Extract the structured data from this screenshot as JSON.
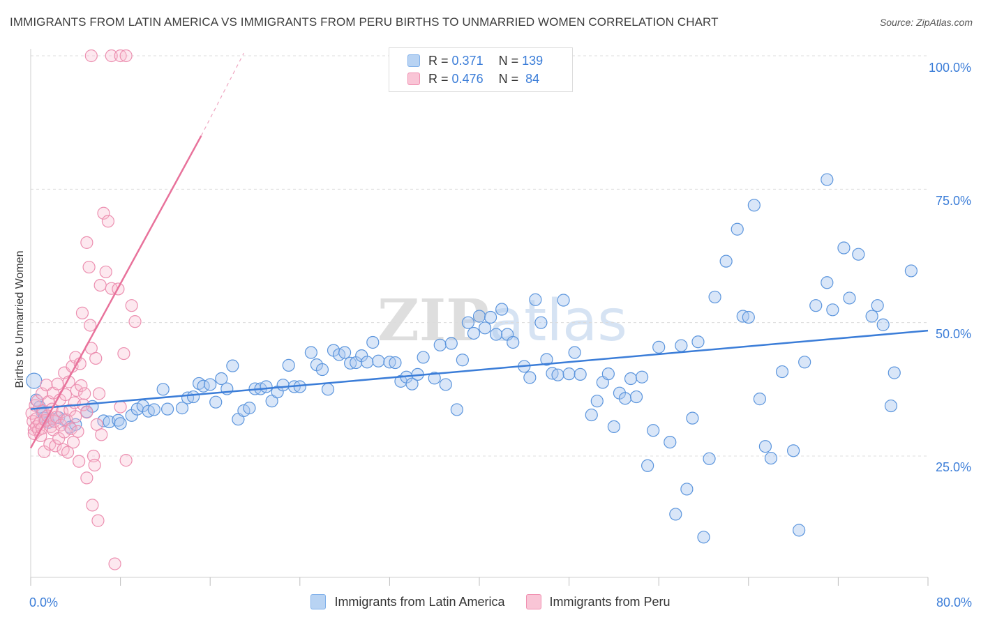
{
  "title": "IMMIGRANTS FROM LATIN AMERICA VS IMMIGRANTS FROM PERU BIRTHS TO UNMARRIED WOMEN CORRELATION CHART",
  "source": "Source: ZipAtlas.com",
  "watermark": "ZIPatlas",
  "legend": {
    "r_label": "R =",
    "n_label": "N =",
    "series": [
      {
        "r": "0.371",
        "n": "139",
        "color": "#7fb0ea",
        "fill": "#b8d3f3"
      },
      {
        "r": "0.476",
        "n": "84",
        "color": "#f08fb0",
        "fill": "#f9c5d6"
      }
    ]
  },
  "bottom_legend": [
    "Immigrants from Latin America",
    "Immigrants from Peru"
  ],
  "x_tick_labels": [
    "0.0%",
    "80.0%"
  ],
  "y_tick_labels": [
    "100.0%",
    "75.0%",
    "50.0%",
    "25.0%"
  ],
  "chart_data": {
    "type": "scatter",
    "title": "IMMIGRANTS FROM LATIN AMERICA VS IMMIGRANTS FROM PERU BIRTHS TO UNMARRIED WOMEN CORRELATION CHART",
    "xlabel": "",
    "ylabel": "Births to Unmarried Women",
    "xlim": [
      0,
      80
    ],
    "ylim": [
      0,
      103
    ],
    "y_ticks": [
      25,
      50,
      75,
      100
    ],
    "grid": "horizontal dashed",
    "legend_position": "top-center",
    "series": [
      {
        "name": "Immigrants from Latin America",
        "color": "#3b7dd8",
        "trend": {
          "x": [
            0,
            80
          ],
          "y": [
            33.8,
            48.5
          ]
        },
        "points": [
          [
            0.3,
            39.1
          ],
          [
            0.5,
            35.5
          ],
          [
            0.8,
            34.2
          ],
          [
            1,
            33.3
          ],
          [
            1.2,
            32.1
          ],
          [
            1.4,
            31.7
          ],
          [
            1.6,
            31.3
          ],
          [
            2,
            31.9
          ],
          [
            2.5,
            32.2
          ],
          [
            3,
            31.8
          ],
          [
            3.5,
            30.4
          ],
          [
            4,
            30.9
          ],
          [
            5,
            33.3
          ],
          [
            5.5,
            34.3
          ],
          [
            6.5,
            31.6
          ],
          [
            7,
            31.4
          ],
          [
            7.8,
            31.7
          ],
          [
            8,
            31.1
          ],
          [
            9,
            32.6
          ],
          [
            9.5,
            33.8
          ],
          [
            10,
            34.4
          ],
          [
            10.5,
            33.4
          ],
          [
            11,
            33.7
          ],
          [
            11.8,
            37.5
          ],
          [
            12.2,
            33.8
          ],
          [
            13.5,
            34
          ],
          [
            14,
            35.9
          ],
          [
            14.5,
            36.1
          ],
          [
            15,
            38.6
          ],
          [
            15.4,
            38.1
          ],
          [
            16,
            38.4
          ],
          [
            16.5,
            35.1
          ],
          [
            17,
            39.5
          ],
          [
            17.5,
            37.6
          ],
          [
            18,
            41.9
          ],
          [
            18.5,
            31.9
          ],
          [
            19,
            33.5
          ],
          [
            19.5,
            34
          ],
          [
            20,
            37.6
          ],
          [
            20.5,
            37.6
          ],
          [
            21,
            38
          ],
          [
            21.5,
            35.3
          ],
          [
            22,
            37
          ],
          [
            22.5,
            38.3
          ],
          [
            23,
            42
          ],
          [
            23.5,
            38
          ],
          [
            24,
            38
          ],
          [
            25,
            44.4
          ],
          [
            25.5,
            42.1
          ],
          [
            26,
            41.2
          ],
          [
            26.5,
            37.5
          ],
          [
            27,
            44.8
          ],
          [
            27.5,
            44
          ],
          [
            28,
            44.4
          ],
          [
            28.5,
            42.4
          ],
          [
            29,
            42.5
          ],
          [
            29.5,
            43.8
          ],
          [
            30,
            42.6
          ],
          [
            30.5,
            46.3
          ],
          [
            31,
            42.8
          ],
          [
            32,
            42.6
          ],
          [
            32.5,
            42.5
          ],
          [
            33,
            39
          ],
          [
            33.5,
            39.8
          ],
          [
            34,
            38.5
          ],
          [
            34.5,
            40.3
          ],
          [
            35,
            43.5
          ],
          [
            36,
            39.6
          ],
          [
            36.5,
            45.8
          ],
          [
            37,
            38.4
          ],
          [
            37.5,
            46.1
          ],
          [
            38,
            33.7
          ],
          [
            38.5,
            43
          ],
          [
            39,
            50
          ],
          [
            39.5,
            48
          ],
          [
            40,
            51.2
          ],
          [
            40.5,
            49
          ],
          [
            41,
            51
          ],
          [
            41.5,
            47.8
          ],
          [
            42,
            52.5
          ],
          [
            42.5,
            47.8
          ],
          [
            43,
            46.3
          ],
          [
            44,
            41.8
          ],
          [
            44.5,
            39.7
          ],
          [
            45,
            54.3
          ],
          [
            45.5,
            50
          ],
          [
            46,
            43.1
          ],
          [
            46.5,
            40.5
          ],
          [
            47,
            40.2
          ],
          [
            47.5,
            54.2
          ],
          [
            48,
            40.4
          ],
          [
            48.5,
            44.4
          ],
          [
            49,
            40.3
          ],
          [
            50,
            32.7
          ],
          [
            50.5,
            35.3
          ],
          [
            51,
            38.8
          ],
          [
            51.5,
            40.4
          ],
          [
            52,
            30.5
          ],
          [
            52.5,
            36.8
          ],
          [
            53,
            35.8
          ],
          [
            53.5,
            39.5
          ],
          [
            54,
            36.1
          ],
          [
            54.5,
            39.8
          ],
          [
            55,
            23.2
          ],
          [
            55.5,
            29.8
          ],
          [
            56,
            45.4
          ],
          [
            57,
            27.6
          ],
          [
            57.5,
            14.1
          ],
          [
            58,
            45.7
          ],
          [
            58.5,
            18.8
          ],
          [
            59,
            32.1
          ],
          [
            59.5,
            46.4
          ],
          [
            60,
            9.8
          ],
          [
            60.5,
            24.5
          ],
          [
            61,
            54.8
          ],
          [
            62,
            61.5
          ],
          [
            63,
            67.5
          ],
          [
            63.5,
            51.2
          ],
          [
            64,
            51
          ],
          [
            64.5,
            72
          ],
          [
            65,
            35.7
          ],
          [
            65.5,
            26.8
          ],
          [
            66,
            24.6
          ],
          [
            67,
            40.8
          ],
          [
            68,
            26
          ],
          [
            68.5,
            11.1
          ],
          [
            69,
            42.6
          ],
          [
            70,
            53.2
          ],
          [
            71,
            57.5
          ],
          [
            71.5,
            52.4
          ],
          [
            72.5,
            64
          ],
          [
            73,
            54.6
          ],
          [
            73.8,
            62.8
          ],
          [
            75,
            51.2
          ],
          [
            75.5,
            53.2
          ],
          [
            76,
            49.6
          ],
          [
            76.7,
            34.4
          ],
          [
            77,
            40.6
          ],
          [
            78.5,
            59.7
          ],
          [
            71,
            76.8
          ]
        ]
      },
      {
        "name": "Immigrants from Peru",
        "color": "#e8729b",
        "trend": {
          "x": [
            0,
            15.2
          ],
          "y": [
            26.5,
            85.0
          ]
        },
        "trend_dashed": {
          "x": [
            15.2,
            19
          ],
          "y": [
            85.0,
            100.5
          ]
        },
        "points": [
          [
            0.1,
            33
          ],
          [
            0.2,
            31.5
          ],
          [
            0.3,
            30
          ],
          [
            0.3,
            29.2
          ],
          [
            0.4,
            34.5
          ],
          [
            0.5,
            32
          ],
          [
            0.5,
            30.5
          ],
          [
            0.6,
            35.3
          ],
          [
            0.7,
            29.9
          ],
          [
            0.8,
            31.2
          ],
          [
            0.9,
            28.8
          ],
          [
            1,
            36.7
          ],
          [
            1,
            30.2
          ],
          [
            1.1,
            33.5
          ],
          [
            1.2,
            25.8
          ],
          [
            1.3,
            31.7
          ],
          [
            1.4,
            38.3
          ],
          [
            1.5,
            32.5
          ],
          [
            1.6,
            35.2
          ],
          [
            1.7,
            27.2
          ],
          [
            1.8,
            30.5
          ],
          [
            1.9,
            33.8
          ],
          [
            2,
            36.8
          ],
          [
            2,
            29.9
          ],
          [
            2.1,
            31.5
          ],
          [
            2.2,
            26.9
          ],
          [
            2.3,
            32.3
          ],
          [
            2.4,
            38.5
          ],
          [
            2.5,
            28.3
          ],
          [
            2.6,
            35.5
          ],
          [
            2.7,
            30.8
          ],
          [
            2.8,
            33.3
          ],
          [
            2.9,
            26.2
          ],
          [
            3,
            40.6
          ],
          [
            3,
            29.5
          ],
          [
            3.1,
            36.5
          ],
          [
            3.2,
            31.8
          ],
          [
            3.3,
            25.7
          ],
          [
            3.4,
            38.9
          ],
          [
            3.5,
            33.6
          ],
          [
            3.6,
            30.1
          ],
          [
            3.7,
            41.8
          ],
          [
            3.8,
            27.6
          ],
          [
            3.9,
            35
          ],
          [
            4,
            43.5
          ],
          [
            4,
            32.4
          ],
          [
            4.1,
            37.3
          ],
          [
            4.2,
            29.6
          ],
          [
            4.3,
            24
          ],
          [
            4.4,
            42.3
          ],
          [
            4.5,
            38.2
          ],
          [
            4.6,
            51.8
          ],
          [
            4.7,
            34.6
          ],
          [
            4.8,
            36.7
          ],
          [
            5,
            20.9
          ],
          [
            5,
            65
          ],
          [
            5,
            33.2
          ],
          [
            5.2,
            60.4
          ],
          [
            5.3,
            49.5
          ],
          [
            5.4,
            45.2
          ],
          [
            5.5,
            15.8
          ],
          [
            5.6,
            25
          ],
          [
            5.7,
            23.3
          ],
          [
            5.8,
            43.3
          ],
          [
            5.9,
            30.9
          ],
          [
            6,
            12.9
          ],
          [
            6.1,
            36.7
          ],
          [
            6.2,
            57
          ],
          [
            6.3,
            29
          ],
          [
            6.5,
            70.5
          ],
          [
            6.7,
            59.5
          ],
          [
            6.9,
            69
          ],
          [
            7.2,
            56.4
          ],
          [
            7.5,
            4.8
          ],
          [
            7.8,
            56.3
          ],
          [
            8,
            34.2
          ],
          [
            8.5,
            24.2
          ],
          [
            9,
            53.2
          ],
          [
            9.3,
            50.2
          ],
          [
            8.3,
            44.2
          ],
          [
            5.4,
            100
          ],
          [
            7.2,
            100
          ],
          [
            8,
            100
          ],
          [
            8.5,
            100
          ]
        ]
      }
    ]
  }
}
